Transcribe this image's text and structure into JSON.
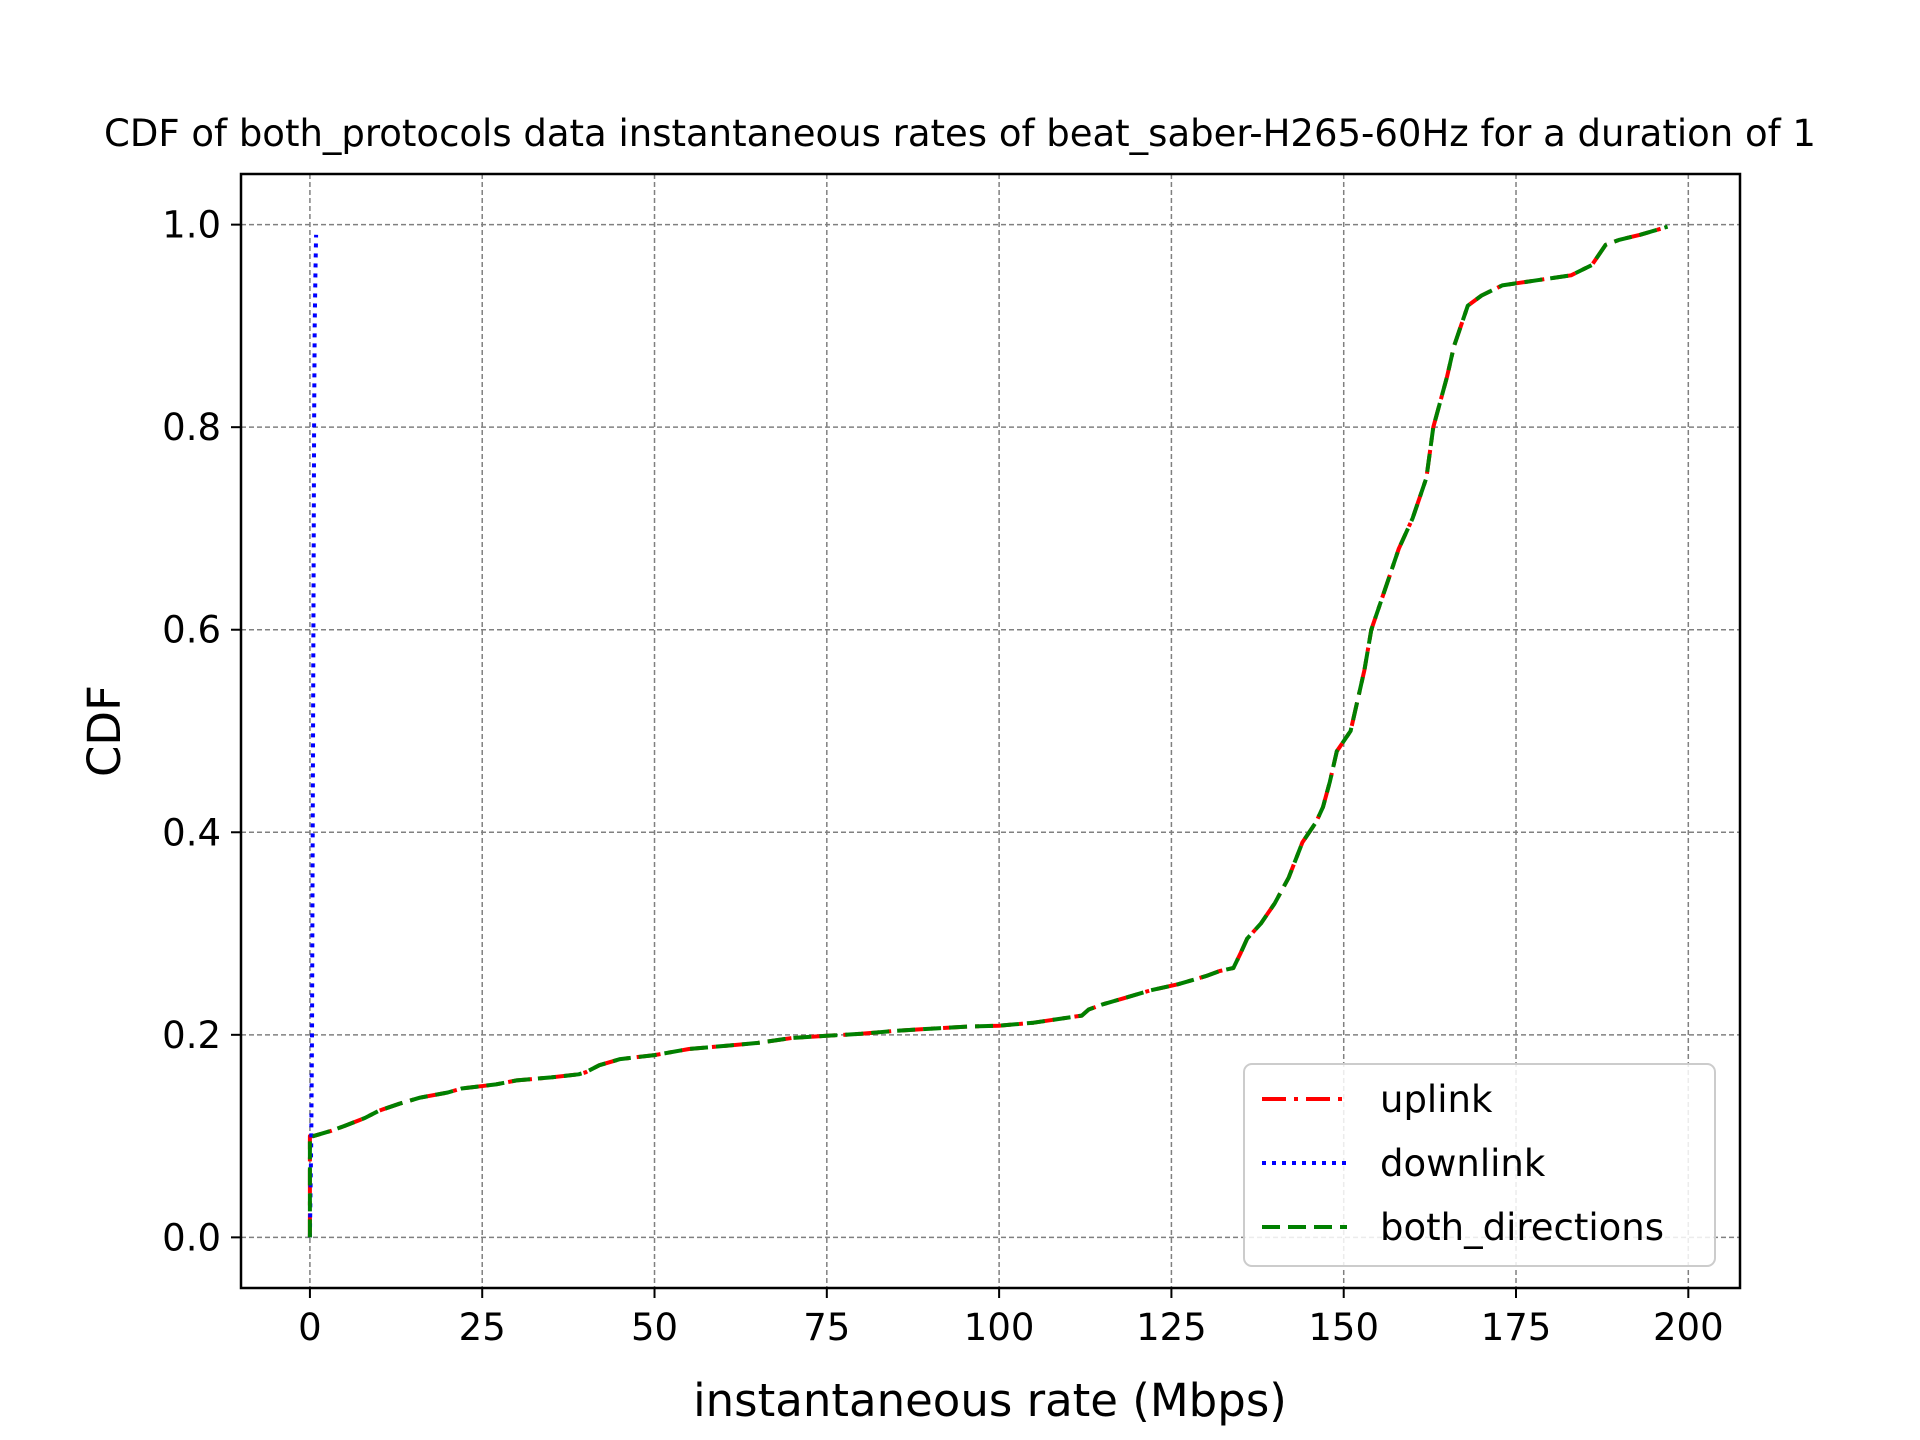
{
  "chart_data": {
    "type": "line",
    "title": "CDF of both_protocols data instantaneous rates of beat_saber-H265-60Hz for a duration of 1",
    "xlabel": "instantaneous rate (Mbps)",
    "ylabel": "CDF",
    "xlim": [
      -10,
      207.5
    ],
    "ylim": [
      -0.05,
      1.05
    ],
    "xticks": [
      0,
      25,
      50,
      75,
      100,
      125,
      150,
      175,
      200
    ],
    "yticks": [
      0.0,
      0.2,
      0.4,
      0.6,
      0.8,
      1.0
    ],
    "xtick_labels": [
      "0",
      "25",
      "50",
      "75",
      "100",
      "125",
      "150",
      "175",
      "200"
    ],
    "ytick_labels": [
      "0.0",
      "0.2",
      "0.4",
      "0.6",
      "0.8",
      "1.0"
    ],
    "grid": true,
    "legend_position": "lower right",
    "series": [
      {
        "name": "uplink",
        "color": "#ff0000",
        "linestyle": "dashdot",
        "points": [
          [
            0,
            0
          ],
          [
            0,
            0.08
          ],
          [
            0,
            0.1
          ],
          [
            0.5,
            0.1
          ],
          [
            3,
            0.105
          ],
          [
            5,
            0.11
          ],
          [
            8,
            0.118
          ],
          [
            10,
            0.125
          ],
          [
            13,
            0.132
          ],
          [
            16,
            0.138
          ],
          [
            20,
            0.143
          ],
          [
            22,
            0.147
          ],
          [
            27,
            0.151
          ],
          [
            30,
            0.155
          ],
          [
            35,
            0.158
          ],
          [
            39,
            0.161
          ],
          [
            40,
            0.163
          ],
          [
            42,
            0.17
          ],
          [
            45,
            0.176
          ],
          [
            50,
            0.18
          ],
          [
            55,
            0.186
          ],
          [
            60,
            0.189
          ],
          [
            65,
            0.192
          ],
          [
            70,
            0.197
          ],
          [
            75,
            0.199
          ],
          [
            80,
            0.201
          ],
          [
            85,
            0.204
          ],
          [
            90,
            0.206
          ],
          [
            95,
            0.208
          ],
          [
            100,
            0.209
          ],
          [
            105,
            0.212
          ],
          [
            110,
            0.217
          ],
          [
            112,
            0.219
          ],
          [
            113,
            0.225
          ],
          [
            115,
            0.23
          ],
          [
            118,
            0.236
          ],
          [
            122,
            0.244
          ],
          [
            126,
            0.25
          ],
          [
            130,
            0.258
          ],
          [
            132,
            0.263
          ],
          [
            134,
            0.266
          ],
          [
            135,
            0.28
          ],
          [
            136,
            0.295
          ],
          [
            138,
            0.31
          ],
          [
            140,
            0.33
          ],
          [
            142,
            0.355
          ],
          [
            144,
            0.39
          ],
          [
            146,
            0.41
          ],
          [
            147,
            0.425
          ],
          [
            148,
            0.45
          ],
          [
            149,
            0.48
          ],
          [
            151,
            0.5
          ],
          [
            152,
            0.53
          ],
          [
            153,
            0.56
          ],
          [
            154,
            0.6
          ],
          [
            156,
            0.64
          ],
          [
            158,
            0.68
          ],
          [
            160,
            0.71
          ],
          [
            162,
            0.75
          ],
          [
            163,
            0.8
          ],
          [
            165,
            0.85
          ],
          [
            166,
            0.88
          ],
          [
            168,
            0.92
          ],
          [
            170,
            0.93
          ],
          [
            173,
            0.94
          ],
          [
            178,
            0.945
          ],
          [
            183,
            0.95
          ],
          [
            186,
            0.96
          ],
          [
            187,
            0.97
          ],
          [
            188,
            0.98
          ],
          [
            190,
            0.985
          ],
          [
            193,
            0.99
          ],
          [
            197,
            0.998
          ]
        ]
      },
      {
        "name": "downlink",
        "color": "#0000ff",
        "linestyle": "dotted",
        "points": [
          [
            0,
            0
          ],
          [
            0.1,
            0.05
          ],
          [
            0.2,
            0.1
          ],
          [
            0.3,
            0.2
          ],
          [
            0.4,
            0.4
          ],
          [
            0.5,
            0.6
          ],
          [
            0.6,
            0.8
          ],
          [
            0.7,
            0.9
          ],
          [
            0.8,
            0.95
          ],
          [
            0.9,
            0.99
          ]
        ]
      },
      {
        "name": "both_directions",
        "color": "#008000",
        "linestyle": "dashed",
        "points": [
          [
            0,
            0
          ],
          [
            0,
            0.08
          ],
          [
            0,
            0.1
          ],
          [
            0.5,
            0.1
          ],
          [
            3,
            0.105
          ],
          [
            5,
            0.11
          ],
          [
            8,
            0.118
          ],
          [
            10,
            0.125
          ],
          [
            13,
            0.132
          ],
          [
            16,
            0.138
          ],
          [
            20,
            0.143
          ],
          [
            22,
            0.147
          ],
          [
            27,
            0.151
          ],
          [
            30,
            0.155
          ],
          [
            35,
            0.158
          ],
          [
            39,
            0.161
          ],
          [
            40,
            0.163
          ],
          [
            42,
            0.17
          ],
          [
            45,
            0.176
          ],
          [
            50,
            0.18
          ],
          [
            55,
            0.186
          ],
          [
            60,
            0.189
          ],
          [
            65,
            0.192
          ],
          [
            70,
            0.197
          ],
          [
            75,
            0.199
          ],
          [
            80,
            0.201
          ],
          [
            85,
            0.204
          ],
          [
            90,
            0.206
          ],
          [
            95,
            0.208
          ],
          [
            100,
            0.209
          ],
          [
            105,
            0.212
          ],
          [
            110,
            0.217
          ],
          [
            112,
            0.219
          ],
          [
            113,
            0.225
          ],
          [
            115,
            0.23
          ],
          [
            118,
            0.236
          ],
          [
            122,
            0.244
          ],
          [
            126,
            0.25
          ],
          [
            130,
            0.258
          ],
          [
            132,
            0.263
          ],
          [
            134,
            0.266
          ],
          [
            135,
            0.28
          ],
          [
            136,
            0.295
          ],
          [
            138,
            0.31
          ],
          [
            140,
            0.33
          ],
          [
            142,
            0.355
          ],
          [
            144,
            0.39
          ],
          [
            146,
            0.41
          ],
          [
            147,
            0.425
          ],
          [
            148,
            0.45
          ],
          [
            149,
            0.48
          ],
          [
            151,
            0.5
          ],
          [
            152,
            0.53
          ],
          [
            153,
            0.56
          ],
          [
            154,
            0.6
          ],
          [
            156,
            0.64
          ],
          [
            158,
            0.68
          ],
          [
            160,
            0.71
          ],
          [
            162,
            0.75
          ],
          [
            163,
            0.8
          ],
          [
            165,
            0.85
          ],
          [
            166,
            0.88
          ],
          [
            168,
            0.92
          ],
          [
            170,
            0.93
          ],
          [
            173,
            0.94
          ],
          [
            178,
            0.945
          ],
          [
            183,
            0.95
          ],
          [
            186,
            0.96
          ],
          [
            187,
            0.97
          ],
          [
            188,
            0.98
          ],
          [
            190,
            0.985
          ],
          [
            193,
            0.99
          ],
          [
            197,
            0.998
          ]
        ]
      }
    ]
  }
}
